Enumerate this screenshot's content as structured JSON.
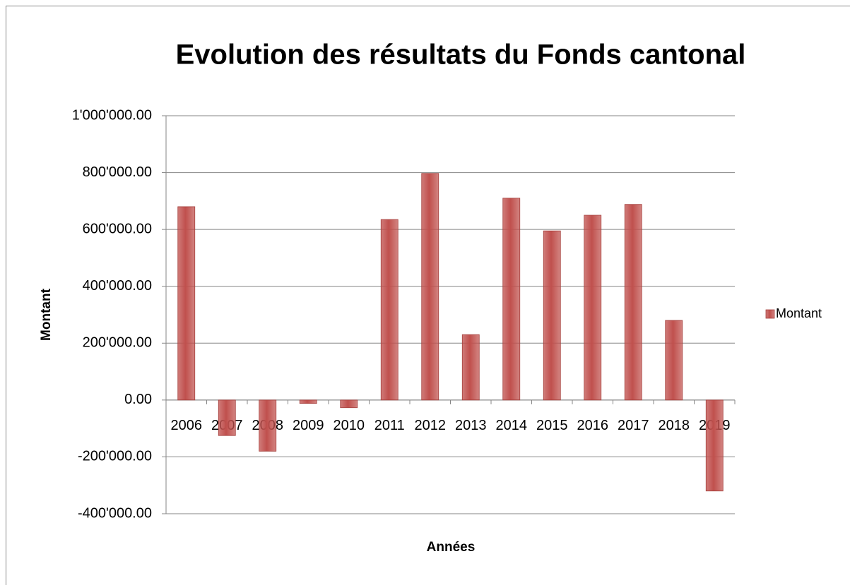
{
  "chart_data": {
    "type": "bar",
    "title": "Evolution des résultats du Fonds cantonal",
    "x_label": "Années",
    "y_label": "Montant",
    "categories": [
      "2006",
      "2007",
      "2008",
      "2009",
      "2010",
      "2011",
      "2012",
      "2013",
      "2014",
      "2015",
      "2016",
      "2017",
      "2018",
      "2019"
    ],
    "series": [
      {
        "name": "Montant",
        "color": "#c0504d",
        "values": [
          680000,
          -125000,
          -180000,
          -12000,
          -27000,
          635000,
          797000,
          230000,
          710000,
          595000,
          650000,
          688000,
          280000,
          -320000
        ]
      }
    ],
    "ylim": [
      -400000,
      1000000
    ],
    "yticks": [
      {
        "value": -400000,
        "label": "-400'000.00"
      },
      {
        "value": -200000,
        "label": "-200'000.00"
      },
      {
        "value": 0,
        "label": "0.00"
      },
      {
        "value": 200000,
        "label": "200'000.00"
      },
      {
        "value": 400000,
        "label": "400'000.00"
      },
      {
        "value": 600000,
        "label": "600'000.00"
      },
      {
        "value": 800000,
        "label": "800'000.00"
      },
      {
        "value": 1000000,
        "label": "1'000'000.00"
      }
    ],
    "grid": true,
    "legend": "right"
  }
}
